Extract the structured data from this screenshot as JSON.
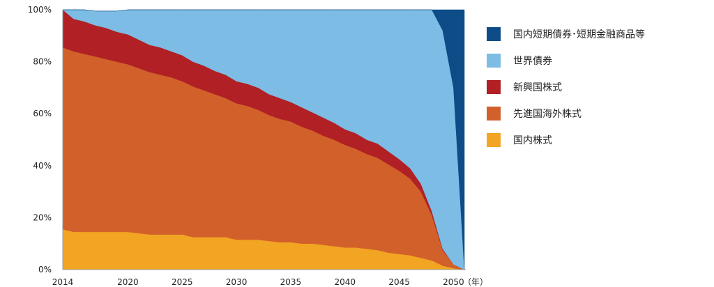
{
  "chart_data": {
    "type": "area",
    "stacked": true,
    "normalized_percent": true,
    "x_tick_labels": [
      "2014",
      "2020",
      "2025",
      "2030",
      "2035",
      "2040",
      "2045",
      "2050"
    ],
    "x_unit_label": "（年）",
    "y_tick_labels": [
      "0%",
      "20%",
      "40%",
      "60%",
      "80%",
      "100%"
    ],
    "ylim": [
      0,
      100
    ],
    "x": [
      2014,
      2015,
      2016,
      2017,
      2018,
      2019,
      2020,
      2021,
      2022,
      2023,
      2024,
      2025,
      2026,
      2027,
      2028,
      2029,
      2030,
      2031,
      2032,
      2033,
      2034,
      2035,
      2036,
      2037,
      2038,
      2039,
      2040,
      2041,
      2042,
      2043,
      2044,
      2045,
      2046,
      2047,
      2048,
      2049,
      2050,
      2051
    ],
    "series": [
      {
        "name": "国内株式",
        "color": "#F2A523",
        "values": [
          15.5,
          14.5,
          14.5,
          14.5,
          14.5,
          14.5,
          14.5,
          14,
          13.5,
          13.5,
          13.5,
          13.5,
          12.5,
          12.5,
          12.5,
          12.5,
          11.5,
          11.5,
          11.5,
          11,
          10.5,
          10.5,
          10,
          10,
          9.5,
          9,
          8.5,
          8.5,
          8,
          7.5,
          6.5,
          6,
          5.5,
          4.5,
          3.5,
          1.5,
          0.5,
          0
        ]
      },
      {
        "name": "先進国海外株式",
        "color": "#D2602A",
        "values": [
          70,
          69.5,
          68.5,
          67.5,
          66.5,
          65.5,
          64.5,
          63.5,
          62.5,
          61.5,
          60.5,
          59,
          58,
          56.5,
          55,
          53.5,
          52.5,
          51.5,
          50,
          48.5,
          47.5,
          46.5,
          45,
          43.5,
          42,
          41,
          39.5,
          38,
          36.5,
          35.5,
          34,
          32,
          29.5,
          25.5,
          17.5,
          6,
          1.5,
          0
        ]
      },
      {
        "name": "新興国株式",
        "color": "#B02024",
        "values": [
          14.5,
          12.5,
          12.5,
          12,
          12,
          11.5,
          11.5,
          11,
          10.5,
          10.5,
          10,
          10,
          9.5,
          9.5,
          9,
          9,
          8.5,
          8.5,
          8.5,
          8,
          8,
          7.5,
          7.5,
          7,
          7,
          6.5,
          6,
          6,
          5.5,
          5.5,
          5,
          4.5,
          4,
          3,
          1.5,
          0.5,
          0,
          0
        ]
      },
      {
        "name": "世界債券",
        "color": "#7DBCE4",
        "values": [
          0,
          3.5,
          4.5,
          5.5,
          6.5,
          8,
          9.5,
          11.5,
          13.5,
          14.5,
          16,
          17.5,
          20,
          21.5,
          23.5,
          25,
          27.5,
          28.5,
          30,
          32.5,
          34,
          35.5,
          37.5,
          39.5,
          41.5,
          43.5,
          46,
          47.5,
          50,
          51.5,
          54.5,
          57.5,
          61,
          67,
          77.5,
          84,
          68,
          0
        ]
      },
      {
        "name": "国内短期債券･短期金融商品等",
        "color": "#0D4C87",
        "values": [
          0,
          0,
          0,
          0,
          0,
          0,
          0,
          0,
          0,
          0,
          0,
          0,
          0,
          0,
          0,
          0,
          0,
          0,
          0,
          0,
          0,
          0,
          0,
          0,
          0,
          0,
          0,
          0,
          0,
          0,
          0,
          0,
          0,
          0,
          0,
          8,
          30,
          100
        ]
      }
    ],
    "legend_placement": "right",
    "grid": false
  },
  "legend": [
    {
      "label": "国内短期債券･短期金融商品等",
      "color": "#0D4C87"
    },
    {
      "label": "世界債券",
      "color": "#7DBCE4"
    },
    {
      "label": "新興国株式",
      "color": "#B02024"
    },
    {
      "label": "先進国海外株式",
      "color": "#D2602A"
    },
    {
      "label": "国内株式",
      "color": "#F2A523"
    }
  ]
}
